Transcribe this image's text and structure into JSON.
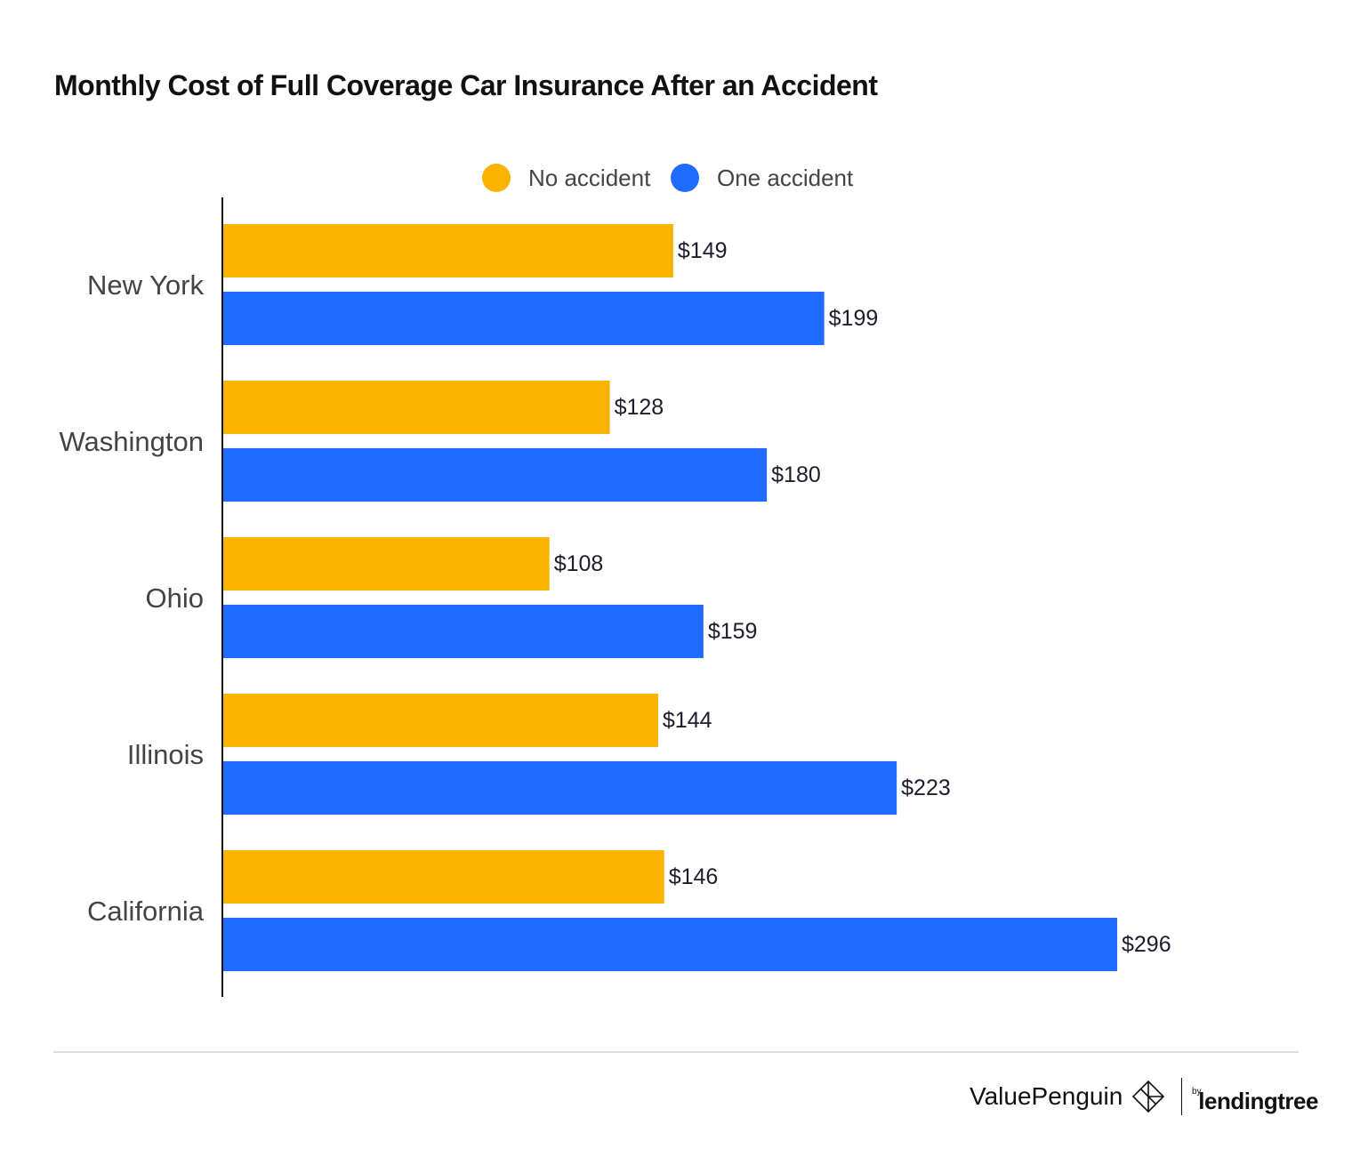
{
  "chart_data": {
    "type": "bar",
    "orientation": "horizontal",
    "title": "Monthly Cost of Full Coverage Car Insurance After an Accident",
    "categories": [
      "New York",
      "Washington",
      "Ohio",
      "Illinois",
      "California"
    ],
    "series": [
      {
        "name": "No accident",
        "color": "#F9B300",
        "values": [
          149,
          128,
          108,
          144,
          146
        ],
        "labels": [
          "$149",
          "$128",
          "$108",
          "$144",
          "$146"
        ]
      },
      {
        "name": "One accident",
        "color": "#1F6BFF",
        "values": [
          199,
          180,
          159,
          223,
          296
        ],
        "labels": [
          "$199",
          "$180",
          "$159",
          "$223",
          "$296"
        ]
      }
    ],
    "xlim": [
      0,
      296
    ],
    "grid": false,
    "legend_position": "top-center",
    "xlabel": "",
    "ylabel": ""
  },
  "branding": {
    "logo": "ValuePenguin by lendingtree"
  }
}
